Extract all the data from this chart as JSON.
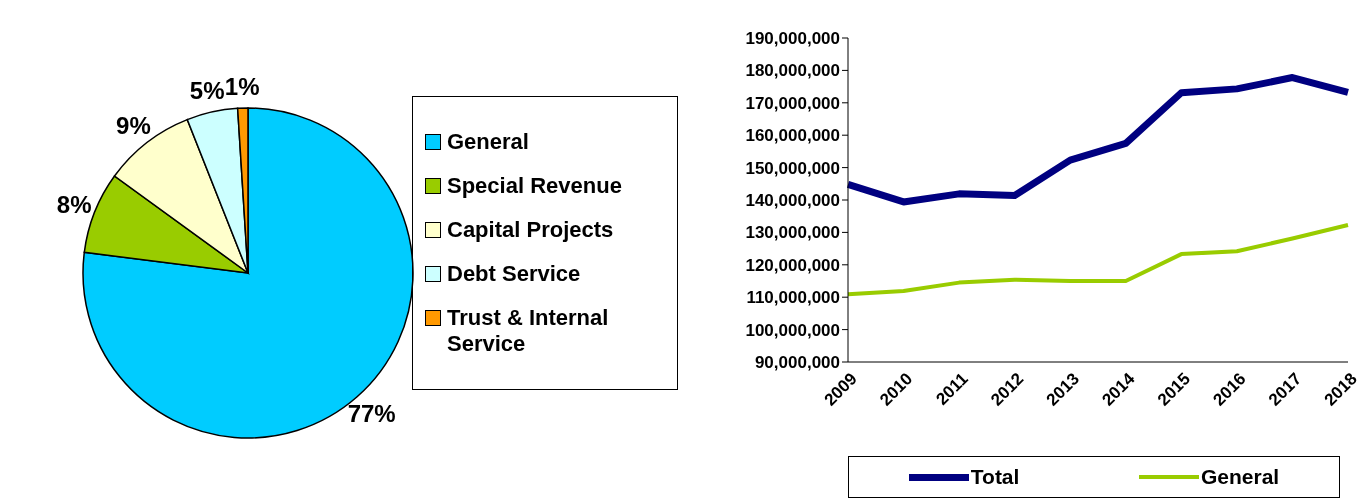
{
  "chart_data": [
    {
      "type": "pie",
      "categories": [
        "General",
        "Special Revenue",
        "Capital Projects",
        "Debt Service",
        "Trust & Internal Service"
      ],
      "values": [
        77,
        8,
        9,
        5,
        1
      ],
      "colors": [
        "#00ccff",
        "#99cc00",
        "#ffffcc",
        "#ccffff",
        "#ff9900"
      ],
      "value_labels": [
        "77%",
        "8%",
        "9%",
        "5%",
        "1%"
      ],
      "legend": "right"
    },
    {
      "type": "line",
      "categories": [
        "2009",
        "2010",
        "2011",
        "2012",
        "2013",
        "2014",
        "2015",
        "2016",
        "2017",
        "2018"
      ],
      "series": [
        {
          "name": "Total",
          "color": "#000080",
          "values": [
            144800000,
            139400000,
            141900000,
            141400000,
            152300000,
            157500000,
            173100000,
            174300000,
            177800000,
            173200000
          ]
        },
        {
          "name": "General",
          "color": "#99cc00",
          "values": [
            110900000,
            111900000,
            114500000,
            115400000,
            115000000,
            115000000,
            123300000,
            124200000,
            128100000,
            132300000
          ]
        }
      ],
      "ylim": [
        90000000,
        190000000
      ],
      "yticks": [
        {
          "value": 90000000,
          "label": "90,000,000"
        },
        {
          "value": 100000000,
          "label": "100,000,000"
        },
        {
          "value": 110000000,
          "label": "110,000,000"
        },
        {
          "value": 120000000,
          "label": "120,000,000"
        },
        {
          "value": 130000000,
          "label": "130,000,000"
        },
        {
          "value": 140000000,
          "label": "140,000,000"
        },
        {
          "value": 150000000,
          "label": "150,000,000"
        },
        {
          "value": 160000000,
          "label": "160,000,000"
        },
        {
          "value": 170000000,
          "label": "170,000,000"
        },
        {
          "value": 180000000,
          "label": "180,000,000"
        },
        {
          "value": 190000000,
          "label": "190,000,000"
        }
      ],
      "legend": "bottom",
      "marker": "none",
      "line_style": "solid"
    }
  ]
}
